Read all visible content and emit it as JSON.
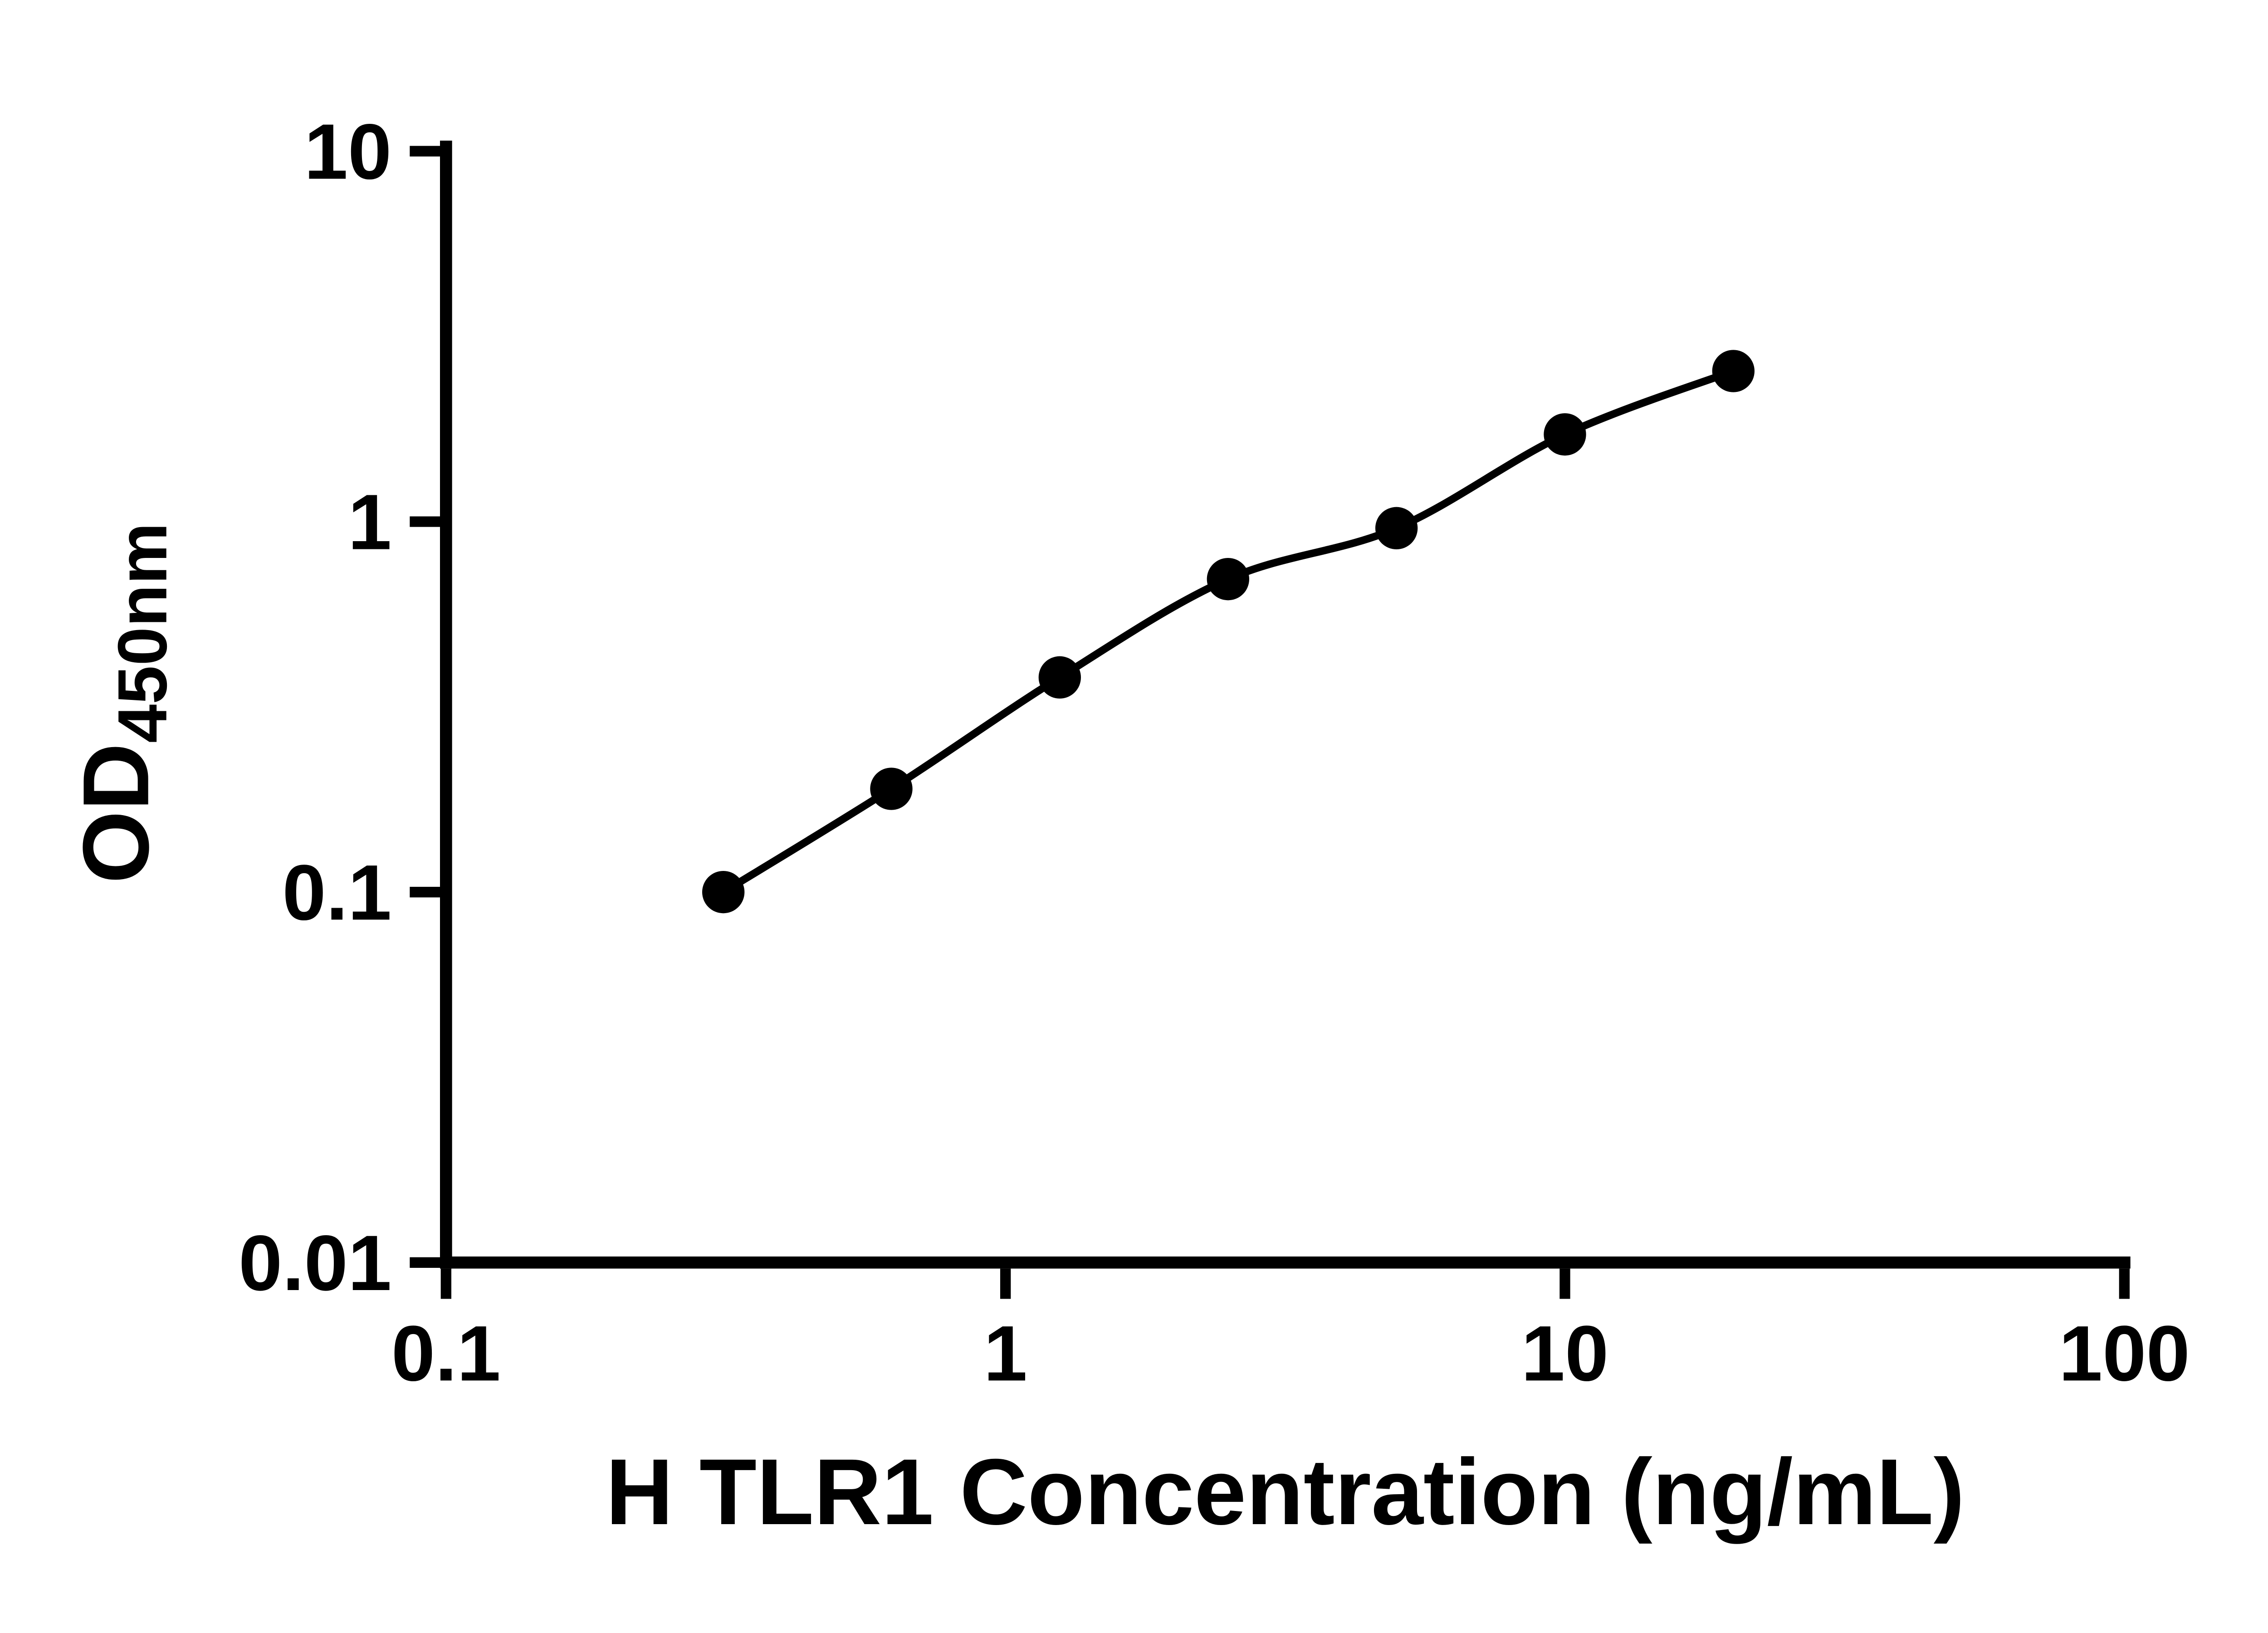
{
  "colors": {
    "foreground": "#000000",
    "background": "#ffffff"
  },
  "chart_data": {
    "type": "scatter",
    "title": "",
    "xlabel": "H TLR1 Concentration (ng/mL)",
    "ylabel": "OD450nm",
    "ylabel_main": "OD",
    "ylabel_sub": "450nm",
    "x_scale": "log",
    "y_scale": "log",
    "xlim": [
      0.1,
      100
    ],
    "ylim": [
      0.01,
      10
    ],
    "grid": false,
    "legend": "none",
    "x_ticks": [
      {
        "value": 0.1,
        "label": "0.1"
      },
      {
        "value": 1,
        "label": "1"
      },
      {
        "value": 10,
        "label": "10"
      },
      {
        "value": 100,
        "label": "100"
      }
    ],
    "y_ticks": [
      {
        "value": 10,
        "label": "10"
      },
      {
        "value": 1,
        "label": "1"
      },
      {
        "value": 0.1,
        "label": "0.1"
      },
      {
        "value": 0.01,
        "label": "0.01"
      }
    ],
    "series": [
      {
        "marker": "filled-circle",
        "color": "#000000",
        "x": [
          0.313,
          0.625,
          1.25,
          2.5,
          5,
          10,
          20
        ],
        "y": [
          0.1,
          0.19,
          0.38,
          0.7,
          0.96,
          1.72,
          2.55
        ]
      }
    ],
    "fit_curve": true
  }
}
